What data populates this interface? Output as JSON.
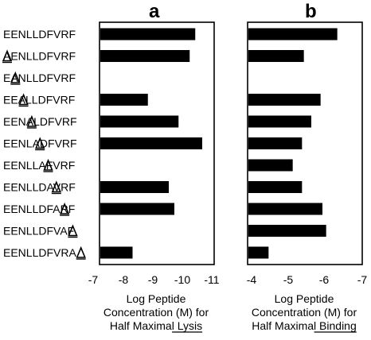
{
  "chart_data": [
    {
      "type": "bar",
      "orientation": "horizontal",
      "title": "a",
      "xlabel": [
        "Log Peptide",
        "Concentration (M) for",
        "Half Maximal Lysis"
      ],
      "xlabel_underlined_word": "Lysis",
      "xlim": [
        -7,
        -11
      ],
      "xticks": [
        "-7",
        "-8",
        "-9",
        "-10",
        "-11"
      ],
      "categories": [
        "EENLLDFVRF",
        "AENLLDFVRF",
        "EANLLDFVRF",
        "EEALLDFVRF",
        "EENALDFVRF",
        "EENLADFVRF",
        "EENLLAFVRF",
        "EENLLDAVRF",
        "EENLLDFARF",
        "EENLLDFVAF",
        "EENLLDFVRA"
      ],
      "values": [
        -10.35,
        -10.15,
        null,
        -8.65,
        -9.75,
        -10.6,
        null,
        -9.4,
        -9.6,
        null,
        -8.1
      ]
    },
    {
      "type": "bar",
      "orientation": "horizontal",
      "title": "b",
      "xlabel": [
        "Log Peptide",
        "Concentration (M) for",
        "Half Maximal Binding"
      ],
      "xlabel_underlined_word": "Binding",
      "xlim": [
        -4,
        -7
      ],
      "xticks": [
        "-4",
        "-5",
        "-6",
        "-7"
      ],
      "categories": [
        "EENLLDFVRF",
        "AENLLDFVRF",
        "EANLLDFVRF",
        "EEALLDFVRF",
        "EENALDFVRF",
        "EENLADFVRF",
        "EENLLAFVRF",
        "EENLLDAVRF",
        "EENLLDFARF",
        "EENLLDFVAF",
        "EENLLDFVRA"
      ],
      "values": [
        -6.35,
        -5.45,
        null,
        -5.9,
        -5.65,
        -5.4,
        -5.15,
        -5.4,
        -5.95,
        -6.05,
        -4.5
      ]
    }
  ],
  "alanine_positions": [
    null,
    0,
    1,
    2,
    3,
    4,
    5,
    6,
    7,
    8,
    9
  ]
}
